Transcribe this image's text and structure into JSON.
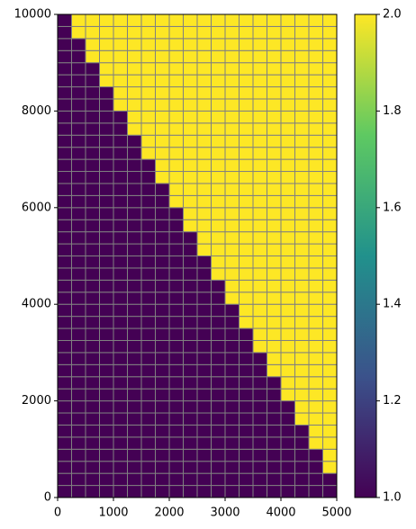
{
  "chart_data": {
    "type": "heatmap",
    "xlim": [
      0,
      5000
    ],
    "ylim": [
      0,
      10000
    ],
    "xticks": [
      0,
      1000,
      2000,
      3000,
      4000,
      5000
    ],
    "yticks": [
      0,
      2000,
      4000,
      6000,
      8000,
      10000
    ],
    "cmap": "viridis",
    "edgecolor": "#808080",
    "colorbar": {
      "lim": [
        1,
        2
      ],
      "ticks": [
        {
          "value": 1.0,
          "label": "1.0"
        },
        {
          "value": 1.2,
          "label": "1.2"
        },
        {
          "value": 1.4,
          "label": "1.4"
        },
        {
          "value": 1.6,
          "label": "1.6"
        },
        {
          "value": 1.8,
          "label": "1.8"
        },
        {
          "value": 2.0,
          "label": "2.0"
        }
      ]
    },
    "z": [
      [
        1,
        1,
        1,
        1,
        1,
        1,
        1,
        1,
        1,
        1,
        1,
        1,
        1,
        1,
        1,
        1,
        1,
        1,
        1,
        1
      ],
      [
        1,
        1,
        1,
        1,
        1,
        1,
        1,
        1,
        1,
        1,
        1,
        1,
        1,
        1,
        1,
        1,
        1,
        1,
        1,
        1
      ],
      [
        1,
        1,
        1,
        1,
        1,
        1,
        1,
        1,
        1,
        1,
        1,
        1,
        1,
        1,
        1,
        1,
        1,
        1,
        1,
        2
      ],
      [
        1,
        1,
        1,
        1,
        1,
        1,
        1,
        1,
        1,
        1,
        1,
        1,
        1,
        1,
        1,
        1,
        1,
        1,
        1,
        2
      ],
      [
        1,
        1,
        1,
        1,
        1,
        1,
        1,
        1,
        1,
        1,
        1,
        1,
        1,
        1,
        1,
        1,
        1,
        1,
        2,
        2
      ],
      [
        1,
        1,
        1,
        1,
        1,
        1,
        1,
        1,
        1,
        1,
        1,
        1,
        1,
        1,
        1,
        1,
        1,
        1,
        2,
        2
      ],
      [
        1,
        1,
        1,
        1,
        1,
        1,
        1,
        1,
        1,
        1,
        1,
        1,
        1,
        1,
        1,
        1,
        1,
        2,
        2,
        2
      ],
      [
        1,
        1,
        1,
        1,
        1,
        1,
        1,
        1,
        1,
        1,
        1,
        1,
        1,
        1,
        1,
        1,
        1,
        2,
        2,
        2
      ],
      [
        1,
        1,
        1,
        1,
        1,
        1,
        1,
        1,
        1,
        1,
        1,
        1,
        1,
        1,
        1,
        1,
        2,
        2,
        2,
        2
      ],
      [
        1,
        1,
        1,
        1,
        1,
        1,
        1,
        1,
        1,
        1,
        1,
        1,
        1,
        1,
        1,
        1,
        2,
        2,
        2,
        2
      ],
      [
        1,
        1,
        1,
        1,
        1,
        1,
        1,
        1,
        1,
        1,
        1,
        1,
        1,
        1,
        1,
        2,
        2,
        2,
        2,
        2
      ],
      [
        1,
        1,
        1,
        1,
        1,
        1,
        1,
        1,
        1,
        1,
        1,
        1,
        1,
        1,
        1,
        2,
        2,
        2,
        2,
        2
      ],
      [
        1,
        1,
        1,
        1,
        1,
        1,
        1,
        1,
        1,
        1,
        1,
        1,
        1,
        1,
        2,
        2,
        2,
        2,
        2,
        2
      ],
      [
        1,
        1,
        1,
        1,
        1,
        1,
        1,
        1,
        1,
        1,
        1,
        1,
        1,
        1,
        2,
        2,
        2,
        2,
        2,
        2
      ],
      [
        1,
        1,
        1,
        1,
        1,
        1,
        1,
        1,
        1,
        1,
        1,
        1,
        1,
        2,
        2,
        2,
        2,
        2,
        2,
        2
      ],
      [
        1,
        1,
        1,
        1,
        1,
        1,
        1,
        1,
        1,
        1,
        1,
        1,
        1,
        2,
        2,
        2,
        2,
        2,
        2,
        2
      ],
      [
        1,
        1,
        1,
        1,
        1,
        1,
        1,
        1,
        1,
        1,
        1,
        1,
        2,
        2,
        2,
        2,
        2,
        2,
        2,
        2
      ],
      [
        1,
        1,
        1,
        1,
        1,
        1,
        1,
        1,
        1,
        1,
        1,
        1,
        2,
        2,
        2,
        2,
        2,
        2,
        2,
        2
      ],
      [
        1,
        1,
        1,
        1,
        1,
        1,
        1,
        1,
        1,
        1,
        1,
        2,
        2,
        2,
        2,
        2,
        2,
        2,
        2,
        2
      ],
      [
        1,
        1,
        1,
        1,
        1,
        1,
        1,
        1,
        1,
        1,
        1,
        2,
        2,
        2,
        2,
        2,
        2,
        2,
        2,
        2
      ],
      [
        1,
        1,
        1,
        1,
        1,
        1,
        1,
        1,
        1,
        1,
        2,
        2,
        2,
        2,
        2,
        2,
        2,
        2,
        2,
        2
      ],
      [
        1,
        1,
        1,
        1,
        1,
        1,
        1,
        1,
        1,
        1,
        2,
        2,
        2,
        2,
        2,
        2,
        2,
        2,
        2,
        2
      ],
      [
        1,
        1,
        1,
        1,
        1,
        1,
        1,
        1,
        1,
        2,
        2,
        2,
        2,
        2,
        2,
        2,
        2,
        2,
        2,
        2
      ],
      [
        1,
        1,
        1,
        1,
        1,
        1,
        1,
        1,
        1,
        2,
        2,
        2,
        2,
        2,
        2,
        2,
        2,
        2,
        2,
        2
      ],
      [
        1,
        1,
        1,
        1,
        1,
        1,
        1,
        1,
        2,
        2,
        2,
        2,
        2,
        2,
        2,
        2,
        2,
        2,
        2,
        2
      ],
      [
        1,
        1,
        1,
        1,
        1,
        1,
        1,
        1,
        2,
        2,
        2,
        2,
        2,
        2,
        2,
        2,
        2,
        2,
        2,
        2
      ],
      [
        1,
        1,
        1,
        1,
        1,
        1,
        1,
        2,
        2,
        2,
        2,
        2,
        2,
        2,
        2,
        2,
        2,
        2,
        2,
        2
      ],
      [
        1,
        1,
        1,
        1,
        1,
        1,
        1,
        2,
        2,
        2,
        2,
        2,
        2,
        2,
        2,
        2,
        2,
        2,
        2,
        2
      ],
      [
        1,
        1,
        1,
        1,
        1,
        1,
        2,
        2,
        2,
        2,
        2,
        2,
        2,
        2,
        2,
        2,
        2,
        2,
        2,
        2
      ],
      [
        1,
        1,
        1,
        1,
        1,
        1,
        2,
        2,
        2,
        2,
        2,
        2,
        2,
        2,
        2,
        2,
        2,
        2,
        2,
        2
      ],
      [
        1,
        1,
        1,
        1,
        1,
        2,
        2,
        2,
        2,
        2,
        2,
        2,
        2,
        2,
        2,
        2,
        2,
        2,
        2,
        2
      ],
      [
        1,
        1,
        1,
        1,
        1,
        2,
        2,
        2,
        2,
        2,
        2,
        2,
        2,
        2,
        2,
        2,
        2,
        2,
        2,
        2
      ],
      [
        1,
        1,
        1,
        1,
        2,
        2,
        2,
        2,
        2,
        2,
        2,
        2,
        2,
        2,
        2,
        2,
        2,
        2,
        2,
        2
      ],
      [
        1,
        1,
        1,
        1,
        2,
        2,
        2,
        2,
        2,
        2,
        2,
        2,
        2,
        2,
        2,
        2,
        2,
        2,
        2,
        2
      ],
      [
        1,
        1,
        1,
        2,
        2,
        2,
        2,
        2,
        2,
        2,
        2,
        2,
        2,
        2,
        2,
        2,
        2,
        2,
        2,
        2
      ],
      [
        1,
        1,
        1,
        2,
        2,
        2,
        2,
        2,
        2,
        2,
        2,
        2,
        2,
        2,
        2,
        2,
        2,
        2,
        2,
        2
      ],
      [
        1,
        1,
        2,
        2,
        2,
        2,
        2,
        2,
        2,
        2,
        2,
        2,
        2,
        2,
        2,
        2,
        2,
        2,
        2,
        2
      ],
      [
        1,
        1,
        2,
        2,
        2,
        2,
        2,
        2,
        2,
        2,
        2,
        2,
        2,
        2,
        2,
        2,
        2,
        2,
        2,
        2
      ],
      [
        1,
        2,
        2,
        2,
        2,
        2,
        2,
        2,
        2,
        2,
        2,
        2,
        2,
        2,
        2,
        2,
        2,
        2,
        2,
        2
      ],
      [
        1,
        2,
        2,
        2,
        2,
        2,
        2,
        2,
        2,
        2,
        2,
        2,
        2,
        2,
        2,
        2,
        2,
        2,
        2,
        2
      ]
    ]
  }
}
